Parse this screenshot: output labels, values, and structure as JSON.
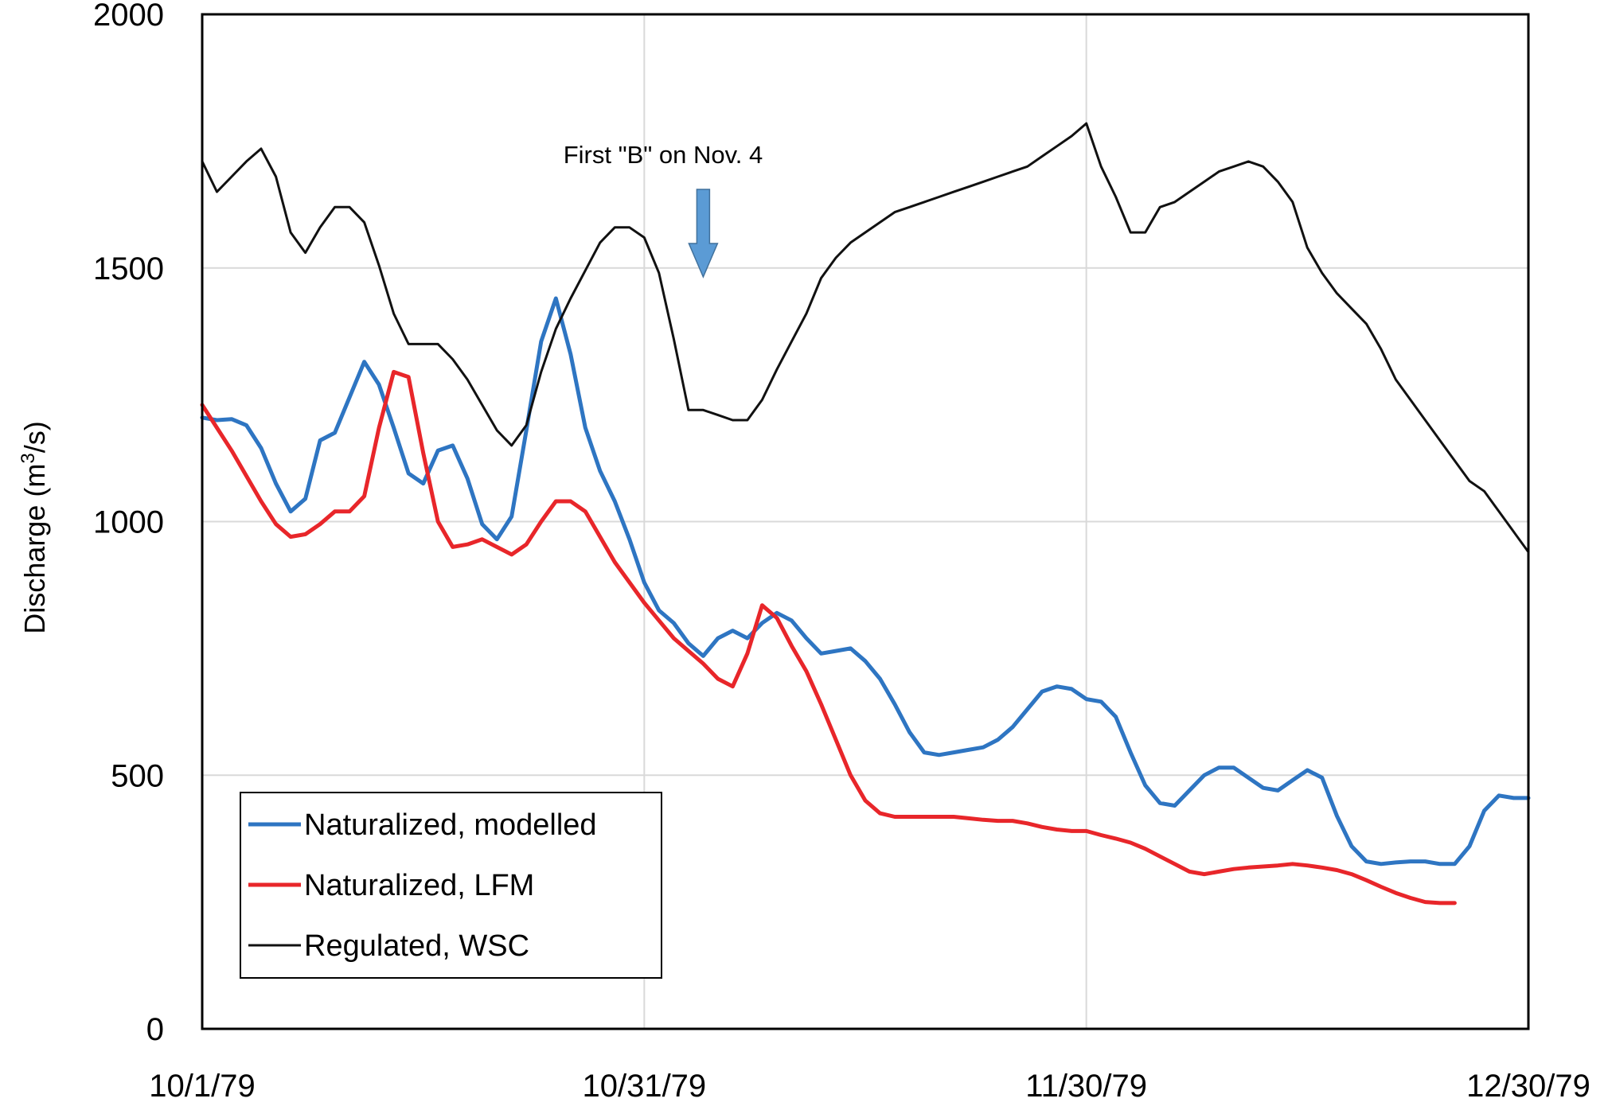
{
  "chart_data": {
    "type": "line",
    "title": "",
    "xlabel": "",
    "ylabel": "Discharge",
    "ylabel_unit_base": "(m",
    "ylabel_unit_sup": "3",
    "ylabel_unit_tail": "/s)",
    "xlim": [
      "10/1/79",
      "12/30/79"
    ],
    "ylim": [
      0,
      2000
    ],
    "x_ticks": [
      "10/1/79",
      "10/31/79",
      "11/30/79",
      "12/30/79"
    ],
    "y_ticks": [
      0,
      500,
      1000,
      1500,
      2000
    ],
    "grid": true,
    "legend_position": "lower-left",
    "annotation": {
      "text": "First \"B\" on Nov. 4",
      "date": "11/4/79",
      "arrow_color": "#5b9bd5"
    },
    "series": [
      {
        "name": "Naturalized, modelled",
        "color": "#2e75c2",
        "points": [
          [
            "10/1/79",
            1205
          ],
          [
            "10/2/79",
            1200
          ],
          [
            "10/3/79",
            1202
          ],
          [
            "10/4/79",
            1190
          ],
          [
            "10/5/79",
            1145
          ],
          [
            "10/6/79",
            1075
          ],
          [
            "10/7/79",
            1020
          ],
          [
            "10/8/79",
            1045
          ],
          [
            "10/9/79",
            1160
          ],
          [
            "10/10/79",
            1175
          ],
          [
            "10/11/79",
            1245
          ],
          [
            "10/12/79",
            1315
          ],
          [
            "10/13/79",
            1270
          ],
          [
            "10/14/79",
            1185
          ],
          [
            "10/15/79",
            1095
          ],
          [
            "10/16/79",
            1075
          ],
          [
            "10/17/79",
            1140
          ],
          [
            "10/18/79",
            1150
          ],
          [
            "10/19/79",
            1085
          ],
          [
            "10/20/79",
            995
          ],
          [
            "10/21/79",
            965
          ],
          [
            "10/22/79",
            1010
          ],
          [
            "10/23/79",
            1180
          ],
          [
            "10/24/79",
            1355
          ],
          [
            "10/25/79",
            1440
          ],
          [
            "10/26/79",
            1330
          ],
          [
            "10/27/79",
            1185
          ],
          [
            "10/28/79",
            1100
          ],
          [
            "10/29/79",
            1040
          ],
          [
            "10/30/79",
            965
          ],
          [
            "10/31/79",
            880
          ],
          [
            "11/1/79",
            825
          ],
          [
            "11/2/79",
            800
          ],
          [
            "11/3/79",
            760
          ],
          [
            "11/4/79",
            735
          ],
          [
            "11/5/79",
            770
          ],
          [
            "11/6/79",
            785
          ],
          [
            "11/7/79",
            770
          ],
          [
            "11/8/79",
            800
          ],
          [
            "11/9/79",
            820
          ],
          [
            "11/10/79",
            805
          ],
          [
            "11/11/79",
            770
          ],
          [
            "11/12/79",
            740
          ],
          [
            "11/13/79",
            745
          ],
          [
            "11/14/79",
            750
          ],
          [
            "11/15/79",
            725
          ],
          [
            "11/16/79",
            690
          ],
          [
            "11/17/79",
            640
          ],
          [
            "11/18/79",
            585
          ],
          [
            "11/19/79",
            545
          ],
          [
            "11/20/79",
            540
          ],
          [
            "11/21/79",
            545
          ],
          [
            "11/22/79",
            550
          ],
          [
            "11/23/79",
            555
          ],
          [
            "11/24/79",
            570
          ],
          [
            "11/25/79",
            595
          ],
          [
            "11/26/79",
            630
          ],
          [
            "11/27/79",
            665
          ],
          [
            "11/28/79",
            675
          ],
          [
            "11/29/79",
            670
          ],
          [
            "11/30/79",
            650
          ],
          [
            "12/1/79",
            645
          ],
          [
            "12/2/79",
            615
          ],
          [
            "12/3/79",
            545
          ],
          [
            "12/4/79",
            480
          ],
          [
            "12/5/79",
            445
          ],
          [
            "12/6/79",
            440
          ],
          [
            "12/7/79",
            470
          ],
          [
            "12/8/79",
            500
          ],
          [
            "12/9/79",
            515
          ],
          [
            "12/10/79",
            515
          ],
          [
            "12/11/79",
            495
          ],
          [
            "12/12/79",
            475
          ],
          [
            "12/13/79",
            470
          ],
          [
            "12/14/79",
            490
          ],
          [
            "12/15/79",
            510
          ],
          [
            "12/16/79",
            495
          ],
          [
            "12/17/79",
            420
          ],
          [
            "12/18/79",
            360
          ],
          [
            "12/19/79",
            330
          ],
          [
            "12/20/79",
            325
          ],
          [
            "12/21/79",
            328
          ],
          [
            "12/22/79",
            330
          ],
          [
            "12/23/79",
            330
          ],
          [
            "12/24/79",
            325
          ],
          [
            "12/25/79",
            325
          ],
          [
            "12/26/79",
            360
          ],
          [
            "12/27/79",
            430
          ],
          [
            "12/28/79",
            460
          ],
          [
            "12/29/79",
            455
          ],
          [
            "12/30/79",
            455
          ]
        ]
      },
      {
        "name": "Naturalized, LFM",
        "color": "#e8262a",
        "points": [
          [
            "10/1/79",
            1230
          ],
          [
            "10/2/79",
            1185
          ],
          [
            "10/3/79",
            1140
          ],
          [
            "10/4/79",
            1090
          ],
          [
            "10/5/79",
            1040
          ],
          [
            "10/6/79",
            995
          ],
          [
            "10/7/79",
            970
          ],
          [
            "10/8/79",
            975
          ],
          [
            "10/9/79",
            995
          ],
          [
            "10/10/79",
            1020
          ],
          [
            "10/11/79",
            1020
          ],
          [
            "10/12/79",
            1050
          ],
          [
            "10/13/79",
            1185
          ],
          [
            "10/14/79",
            1295
          ],
          [
            "10/15/79",
            1285
          ],
          [
            "10/16/79",
            1135
          ],
          [
            "10/17/79",
            1000
          ],
          [
            "10/18/79",
            950
          ],
          [
            "10/19/79",
            955
          ],
          [
            "10/20/79",
            965
          ],
          [
            "10/21/79",
            950
          ],
          [
            "10/22/79",
            935
          ],
          [
            "10/23/79",
            955
          ],
          [
            "10/24/79",
            1000
          ],
          [
            "10/25/79",
            1040
          ],
          [
            "10/26/79",
            1040
          ],
          [
            "10/27/79",
            1020
          ],
          [
            "10/28/79",
            970
          ],
          [
            "10/29/79",
            920
          ],
          [
            "10/30/79",
            880
          ],
          [
            "10/31/79",
            840
          ],
          [
            "11/1/79",
            805
          ],
          [
            "11/2/79",
            770
          ],
          [
            "11/3/79",
            745
          ],
          [
            "11/4/79",
            720
          ],
          [
            "11/5/79",
            690
          ],
          [
            "11/6/79",
            675
          ],
          [
            "11/7/79",
            740
          ],
          [
            "11/8/79",
            835
          ],
          [
            "11/9/79",
            810
          ],
          [
            "11/10/79",
            755
          ],
          [
            "11/11/79",
            705
          ],
          [
            "11/12/79",
            640
          ],
          [
            "11/13/79",
            570
          ],
          [
            "11/14/79",
            500
          ],
          [
            "11/15/79",
            450
          ],
          [
            "11/16/79",
            425
          ],
          [
            "11/17/79",
            418
          ],
          [
            "11/18/79",
            418
          ],
          [
            "11/19/79",
            418
          ],
          [
            "11/20/79",
            418
          ],
          [
            "11/21/79",
            418
          ],
          [
            "11/22/79",
            415
          ],
          [
            "11/23/79",
            412
          ],
          [
            "11/24/79",
            410
          ],
          [
            "11/25/79",
            410
          ],
          [
            "11/26/79",
            405
          ],
          [
            "11/27/79",
            398
          ],
          [
            "11/28/79",
            393
          ],
          [
            "11/29/79",
            390
          ],
          [
            "11/30/79",
            390
          ],
          [
            "12/1/79",
            382
          ],
          [
            "12/2/79",
            375
          ],
          [
            "12/3/79",
            367
          ],
          [
            "12/4/79",
            355
          ],
          [
            "12/5/79",
            340
          ],
          [
            "12/6/79",
            325
          ],
          [
            "12/7/79",
            310
          ],
          [
            "12/8/79",
            305
          ],
          [
            "12/9/79",
            310
          ],
          [
            "12/10/79",
            315
          ],
          [
            "12/11/79",
            318
          ],
          [
            "12/12/79",
            320
          ],
          [
            "12/13/79",
            322
          ],
          [
            "12/14/79",
            325
          ],
          [
            "12/15/79",
            322
          ],
          [
            "12/16/79",
            318
          ],
          [
            "12/17/79",
            313
          ],
          [
            "12/18/79",
            305
          ],
          [
            "12/19/79",
            293
          ],
          [
            "12/20/79",
            280
          ],
          [
            "12/21/79",
            268
          ],
          [
            "12/22/79",
            258
          ],
          [
            "12/23/79",
            250
          ],
          [
            "12/24/79",
            248
          ],
          [
            "12/25/79",
            248
          ]
        ]
      },
      {
        "name": "Regulated, WSC",
        "color": "#111111",
        "points": [
          [
            "10/1/79",
            1710
          ],
          [
            "10/2/79",
            1650
          ],
          [
            "10/3/79",
            1680
          ],
          [
            "10/4/79",
            1710
          ],
          [
            "10/5/79",
            1735
          ],
          [
            "10/6/79",
            1680
          ],
          [
            "10/7/79",
            1570
          ],
          [
            "10/8/79",
            1530
          ],
          [
            "10/9/79",
            1580
          ],
          [
            "10/10/79",
            1620
          ],
          [
            "10/11/79",
            1620
          ],
          [
            "10/12/79",
            1590
          ],
          [
            "10/13/79",
            1505
          ],
          [
            "10/14/79",
            1410
          ],
          [
            "10/15/79",
            1350
          ],
          [
            "10/16/79",
            1350
          ],
          [
            "10/17/79",
            1350
          ],
          [
            "10/18/79",
            1320
          ],
          [
            "10/19/79",
            1280
          ],
          [
            "10/20/79",
            1230
          ],
          [
            "10/21/79",
            1180
          ],
          [
            "10/22/79",
            1150
          ],
          [
            "10/23/79",
            1190
          ],
          [
            "10/24/79",
            1295
          ],
          [
            "10/25/79",
            1380
          ],
          [
            "10/26/79",
            1440
          ],
          [
            "10/27/79",
            1495
          ],
          [
            "10/28/79",
            1550
          ],
          [
            "10/29/79",
            1580
          ],
          [
            "10/30/79",
            1580
          ],
          [
            "10/31/79",
            1560
          ],
          [
            "11/1/79",
            1490
          ],
          [
            "11/2/79",
            1360
          ],
          [
            "11/3/79",
            1220
          ],
          [
            "11/4/79",
            1220
          ],
          [
            "11/5/79",
            1210
          ],
          [
            "11/6/79",
            1200
          ],
          [
            "11/7/79",
            1200
          ],
          [
            "11/8/79",
            1240
          ],
          [
            "11/9/79",
            1300
          ],
          [
            "11/10/79",
            1355
          ],
          [
            "11/11/79",
            1410
          ],
          [
            "11/12/79",
            1480
          ],
          [
            "11/13/79",
            1520
          ],
          [
            "11/14/79",
            1550
          ],
          [
            "11/15/79",
            1570
          ],
          [
            "11/16/79",
            1590
          ],
          [
            "11/17/79",
            1610
          ],
          [
            "11/18/79",
            1620
          ],
          [
            "11/19/79",
            1630
          ],
          [
            "11/20/79",
            1640
          ],
          [
            "11/21/79",
            1650
          ],
          [
            "11/22/79",
            1660
          ],
          [
            "11/23/79",
            1670
          ],
          [
            "11/24/79",
            1680
          ],
          [
            "11/25/79",
            1690
          ],
          [
            "11/26/79",
            1700
          ],
          [
            "11/27/79",
            1720
          ],
          [
            "11/28/79",
            1740
          ],
          [
            "11/29/79",
            1760
          ],
          [
            "11/30/79",
            1785
          ],
          [
            "12/1/79",
            1700
          ],
          [
            "12/2/79",
            1640
          ],
          [
            "12/3/79",
            1570
          ],
          [
            "12/4/79",
            1570
          ],
          [
            "12/5/79",
            1620
          ],
          [
            "12/6/79",
            1630
          ],
          [
            "12/7/79",
            1650
          ],
          [
            "12/8/79",
            1670
          ],
          [
            "12/9/79",
            1690
          ],
          [
            "12/10/79",
            1700
          ],
          [
            "12/11/79",
            1710
          ],
          [
            "12/12/79",
            1700
          ],
          [
            "12/13/79",
            1670
          ],
          [
            "12/14/79",
            1630
          ],
          [
            "12/15/79",
            1540
          ],
          [
            "12/16/79",
            1490
          ],
          [
            "12/17/79",
            1450
          ],
          [
            "12/18/79",
            1420
          ],
          [
            "12/19/79",
            1390
          ],
          [
            "12/20/79",
            1340
          ],
          [
            "12/21/79",
            1280
          ],
          [
            "12/22/79",
            1240
          ],
          [
            "12/23/79",
            1200
          ],
          [
            "12/24/79",
            1160
          ],
          [
            "12/25/79",
            1120
          ],
          [
            "12/26/79",
            1080
          ],
          [
            "12/27/79",
            1060
          ],
          [
            "12/28/79",
            1020
          ],
          [
            "12/29/79",
            980
          ],
          [
            "12/30/79",
            940
          ]
        ]
      }
    ]
  }
}
